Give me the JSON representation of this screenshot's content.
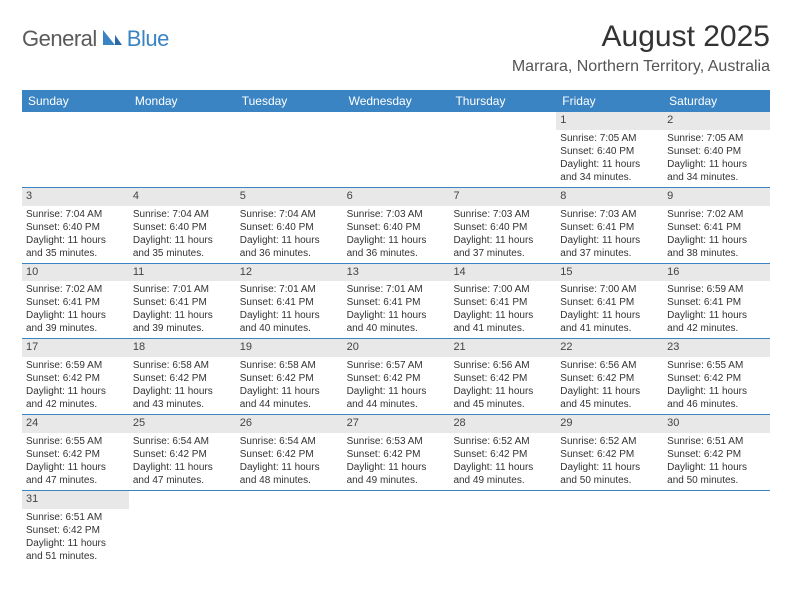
{
  "logo": {
    "main": "General",
    "sub": "Blue"
  },
  "title": "August 2025",
  "location": "Marrara, Northern Territory, Australia",
  "day_headers": [
    "Sunday",
    "Monday",
    "Tuesday",
    "Wednesday",
    "Thursday",
    "Friday",
    "Saturday"
  ],
  "colors": {
    "header_bg": "#3a84c4",
    "header_text": "#ffffff",
    "daynum_bg": "#e8e8e8",
    "row_border": "#3a84c4",
    "logo_blue": "#3a84c4",
    "logo_gray": "#5a5a5a"
  },
  "weeks": [
    [
      null,
      null,
      null,
      null,
      null,
      {
        "n": "1",
        "sr": "Sunrise: 7:05 AM",
        "ss": "Sunset: 6:40 PM",
        "d1": "Daylight: 11 hours",
        "d2": "and 34 minutes."
      },
      {
        "n": "2",
        "sr": "Sunrise: 7:05 AM",
        "ss": "Sunset: 6:40 PM",
        "d1": "Daylight: 11 hours",
        "d2": "and 34 minutes."
      }
    ],
    [
      {
        "n": "3",
        "sr": "Sunrise: 7:04 AM",
        "ss": "Sunset: 6:40 PM",
        "d1": "Daylight: 11 hours",
        "d2": "and 35 minutes."
      },
      {
        "n": "4",
        "sr": "Sunrise: 7:04 AM",
        "ss": "Sunset: 6:40 PM",
        "d1": "Daylight: 11 hours",
        "d2": "and 35 minutes."
      },
      {
        "n": "5",
        "sr": "Sunrise: 7:04 AM",
        "ss": "Sunset: 6:40 PM",
        "d1": "Daylight: 11 hours",
        "d2": "and 36 minutes."
      },
      {
        "n": "6",
        "sr": "Sunrise: 7:03 AM",
        "ss": "Sunset: 6:40 PM",
        "d1": "Daylight: 11 hours",
        "d2": "and 36 minutes."
      },
      {
        "n": "7",
        "sr": "Sunrise: 7:03 AM",
        "ss": "Sunset: 6:40 PM",
        "d1": "Daylight: 11 hours",
        "d2": "and 37 minutes."
      },
      {
        "n": "8",
        "sr": "Sunrise: 7:03 AM",
        "ss": "Sunset: 6:41 PM",
        "d1": "Daylight: 11 hours",
        "d2": "and 37 minutes."
      },
      {
        "n": "9",
        "sr": "Sunrise: 7:02 AM",
        "ss": "Sunset: 6:41 PM",
        "d1": "Daylight: 11 hours",
        "d2": "and 38 minutes."
      }
    ],
    [
      {
        "n": "10",
        "sr": "Sunrise: 7:02 AM",
        "ss": "Sunset: 6:41 PM",
        "d1": "Daylight: 11 hours",
        "d2": "and 39 minutes."
      },
      {
        "n": "11",
        "sr": "Sunrise: 7:01 AM",
        "ss": "Sunset: 6:41 PM",
        "d1": "Daylight: 11 hours",
        "d2": "and 39 minutes."
      },
      {
        "n": "12",
        "sr": "Sunrise: 7:01 AM",
        "ss": "Sunset: 6:41 PM",
        "d1": "Daylight: 11 hours",
        "d2": "and 40 minutes."
      },
      {
        "n": "13",
        "sr": "Sunrise: 7:01 AM",
        "ss": "Sunset: 6:41 PM",
        "d1": "Daylight: 11 hours",
        "d2": "and 40 minutes."
      },
      {
        "n": "14",
        "sr": "Sunrise: 7:00 AM",
        "ss": "Sunset: 6:41 PM",
        "d1": "Daylight: 11 hours",
        "d2": "and 41 minutes."
      },
      {
        "n": "15",
        "sr": "Sunrise: 7:00 AM",
        "ss": "Sunset: 6:41 PM",
        "d1": "Daylight: 11 hours",
        "d2": "and 41 minutes."
      },
      {
        "n": "16",
        "sr": "Sunrise: 6:59 AM",
        "ss": "Sunset: 6:41 PM",
        "d1": "Daylight: 11 hours",
        "d2": "and 42 minutes."
      }
    ],
    [
      {
        "n": "17",
        "sr": "Sunrise: 6:59 AM",
        "ss": "Sunset: 6:42 PM",
        "d1": "Daylight: 11 hours",
        "d2": "and 42 minutes."
      },
      {
        "n": "18",
        "sr": "Sunrise: 6:58 AM",
        "ss": "Sunset: 6:42 PM",
        "d1": "Daylight: 11 hours",
        "d2": "and 43 minutes."
      },
      {
        "n": "19",
        "sr": "Sunrise: 6:58 AM",
        "ss": "Sunset: 6:42 PM",
        "d1": "Daylight: 11 hours",
        "d2": "and 44 minutes."
      },
      {
        "n": "20",
        "sr": "Sunrise: 6:57 AM",
        "ss": "Sunset: 6:42 PM",
        "d1": "Daylight: 11 hours",
        "d2": "and 44 minutes."
      },
      {
        "n": "21",
        "sr": "Sunrise: 6:56 AM",
        "ss": "Sunset: 6:42 PM",
        "d1": "Daylight: 11 hours",
        "d2": "and 45 minutes."
      },
      {
        "n": "22",
        "sr": "Sunrise: 6:56 AM",
        "ss": "Sunset: 6:42 PM",
        "d1": "Daylight: 11 hours",
        "d2": "and 45 minutes."
      },
      {
        "n": "23",
        "sr": "Sunrise: 6:55 AM",
        "ss": "Sunset: 6:42 PM",
        "d1": "Daylight: 11 hours",
        "d2": "and 46 minutes."
      }
    ],
    [
      {
        "n": "24",
        "sr": "Sunrise: 6:55 AM",
        "ss": "Sunset: 6:42 PM",
        "d1": "Daylight: 11 hours",
        "d2": "and 47 minutes."
      },
      {
        "n": "25",
        "sr": "Sunrise: 6:54 AM",
        "ss": "Sunset: 6:42 PM",
        "d1": "Daylight: 11 hours",
        "d2": "and 47 minutes."
      },
      {
        "n": "26",
        "sr": "Sunrise: 6:54 AM",
        "ss": "Sunset: 6:42 PM",
        "d1": "Daylight: 11 hours",
        "d2": "and 48 minutes."
      },
      {
        "n": "27",
        "sr": "Sunrise: 6:53 AM",
        "ss": "Sunset: 6:42 PM",
        "d1": "Daylight: 11 hours",
        "d2": "and 49 minutes."
      },
      {
        "n": "28",
        "sr": "Sunrise: 6:52 AM",
        "ss": "Sunset: 6:42 PM",
        "d1": "Daylight: 11 hours",
        "d2": "and 49 minutes."
      },
      {
        "n": "29",
        "sr": "Sunrise: 6:52 AM",
        "ss": "Sunset: 6:42 PM",
        "d1": "Daylight: 11 hours",
        "d2": "and 50 minutes."
      },
      {
        "n": "30",
        "sr": "Sunrise: 6:51 AM",
        "ss": "Sunset: 6:42 PM",
        "d1": "Daylight: 11 hours",
        "d2": "and 50 minutes."
      }
    ],
    [
      {
        "n": "31",
        "sr": "Sunrise: 6:51 AM",
        "ss": "Sunset: 6:42 PM",
        "d1": "Daylight: 11 hours",
        "d2": "and 51 minutes."
      },
      null,
      null,
      null,
      null,
      null,
      null
    ]
  ]
}
